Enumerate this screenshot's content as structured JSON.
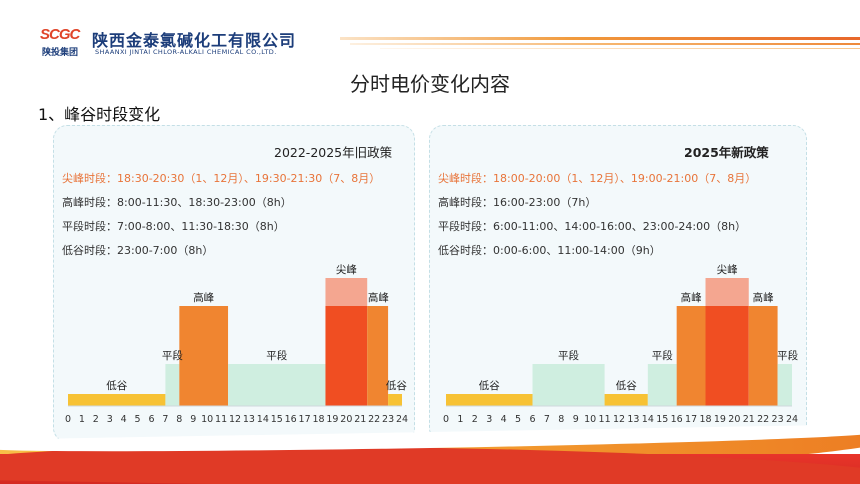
{
  "header": {
    "logo_mark": "SCGC",
    "logo_group": "陕投集团",
    "company_cn": "陕西金泰氯碱化工有限公司",
    "company_en": "SHAANXI JINTAI CHLOR-ALKALI CHEMICAL CO.,LTD."
  },
  "page_title": "分时电价变化内容",
  "section_title": "1、峰谷时段变化",
  "colors": {
    "low": "#f7c234",
    "flat": "#cfeee0",
    "high": "#f08530",
    "peak_top": "#f4a690",
    "peak_core": "#f04e22",
    "accent": "#e8743a"
  },
  "panels": {
    "old": {
      "title": "2022-2025年旧政策",
      "lines": [
        "尖峰时段：18:30-20:30（1、12月）、19:30-21:30（7、8月）",
        "高峰时段：8:00-11:30、18:30-23:00（8h）",
        "平段时段：7:00-8:00、11:30-18:30（8h）",
        "低谷时段：23:00-7:00（8h）"
      ]
    },
    "new": {
      "title": "2025年新政策",
      "lines": [
        "尖峰时段：18:00-20:00（1、12月）、19:00-21:00（7、8月）",
        "高峰时段：16:00-23:00（7h）",
        "平段时段：6:00-11:00、14:00-16:00、23:00-24:00（8h）",
        "低谷时段：0:00-6:00、11:00-14:00（9h）"
      ]
    }
  },
  "chart_data": [
    {
      "type": "bar",
      "title": "2022-2025年旧政策",
      "x_ticks": [
        0,
        1,
        2,
        3,
        4,
        5,
        6,
        7,
        8,
        9,
        10,
        11,
        12,
        13,
        14,
        15,
        16,
        17,
        18,
        19,
        20,
        21,
        22,
        23,
        24
      ],
      "xlim": [
        0,
        24
      ],
      "levels": {
        "低谷": 1,
        "平段": 2,
        "高峰": 3,
        "尖峰": 3.6
      },
      "segments": [
        {
          "start": 0,
          "end": 7,
          "category": "低谷"
        },
        {
          "start": 7,
          "end": 8,
          "category": "平段"
        },
        {
          "start": 8,
          "end": 11.5,
          "category": "高峰"
        },
        {
          "start": 11.5,
          "end": 18.5,
          "category": "平段"
        },
        {
          "start": 18.5,
          "end": 21.5,
          "category": "尖峰"
        },
        {
          "start": 21.5,
          "end": 23,
          "category": "高峰"
        },
        {
          "start": 23,
          "end": 24,
          "category": "低谷"
        }
      ],
      "labels": [
        {
          "text": "低谷",
          "at": 3.5,
          "level": 1
        },
        {
          "text": "平段",
          "at": 7.5,
          "level": 2
        },
        {
          "text": "高峰",
          "at": 9.75,
          "level": 3
        },
        {
          "text": "平段",
          "at": 15,
          "level": 2
        },
        {
          "text": "尖峰",
          "at": 20,
          "level": 3.6
        },
        {
          "text": "高峰",
          "at": 22.3,
          "level": 3
        },
        {
          "text": "低谷",
          "at": 23.6,
          "level": 1
        }
      ]
    },
    {
      "type": "bar",
      "title": "2025年新政策",
      "x_ticks": [
        0,
        1,
        2,
        3,
        4,
        5,
        6,
        7,
        8,
        9,
        10,
        11,
        12,
        13,
        14,
        15,
        16,
        17,
        18,
        19,
        20,
        21,
        22,
        23,
        24
      ],
      "xlim": [
        0,
        24
      ],
      "levels": {
        "低谷": 1,
        "平段": 2,
        "高峰": 3,
        "尖峰": 3.6
      },
      "segments": [
        {
          "start": 0,
          "end": 6,
          "category": "低谷"
        },
        {
          "start": 6,
          "end": 11,
          "category": "平段"
        },
        {
          "start": 11,
          "end": 14,
          "category": "低谷"
        },
        {
          "start": 14,
          "end": 16,
          "category": "平段"
        },
        {
          "start": 16,
          "end": 18,
          "category": "高峰"
        },
        {
          "start": 18,
          "end": 21,
          "category": "尖峰"
        },
        {
          "start": 21,
          "end": 23,
          "category": "高峰"
        },
        {
          "start": 23,
          "end": 24,
          "category": "平段"
        }
      ],
      "labels": [
        {
          "text": "低谷",
          "at": 3,
          "level": 1
        },
        {
          "text": "平段",
          "at": 8.5,
          "level": 2
        },
        {
          "text": "低谷",
          "at": 12.5,
          "level": 1
        },
        {
          "text": "平段",
          "at": 15,
          "level": 2
        },
        {
          "text": "高峰",
          "at": 17,
          "level": 3
        },
        {
          "text": "尖峰",
          "at": 19.5,
          "level": 3.6
        },
        {
          "text": "高峰",
          "at": 22,
          "level": 3
        },
        {
          "text": "平段",
          "at": 23.7,
          "level": 2
        }
      ]
    }
  ]
}
